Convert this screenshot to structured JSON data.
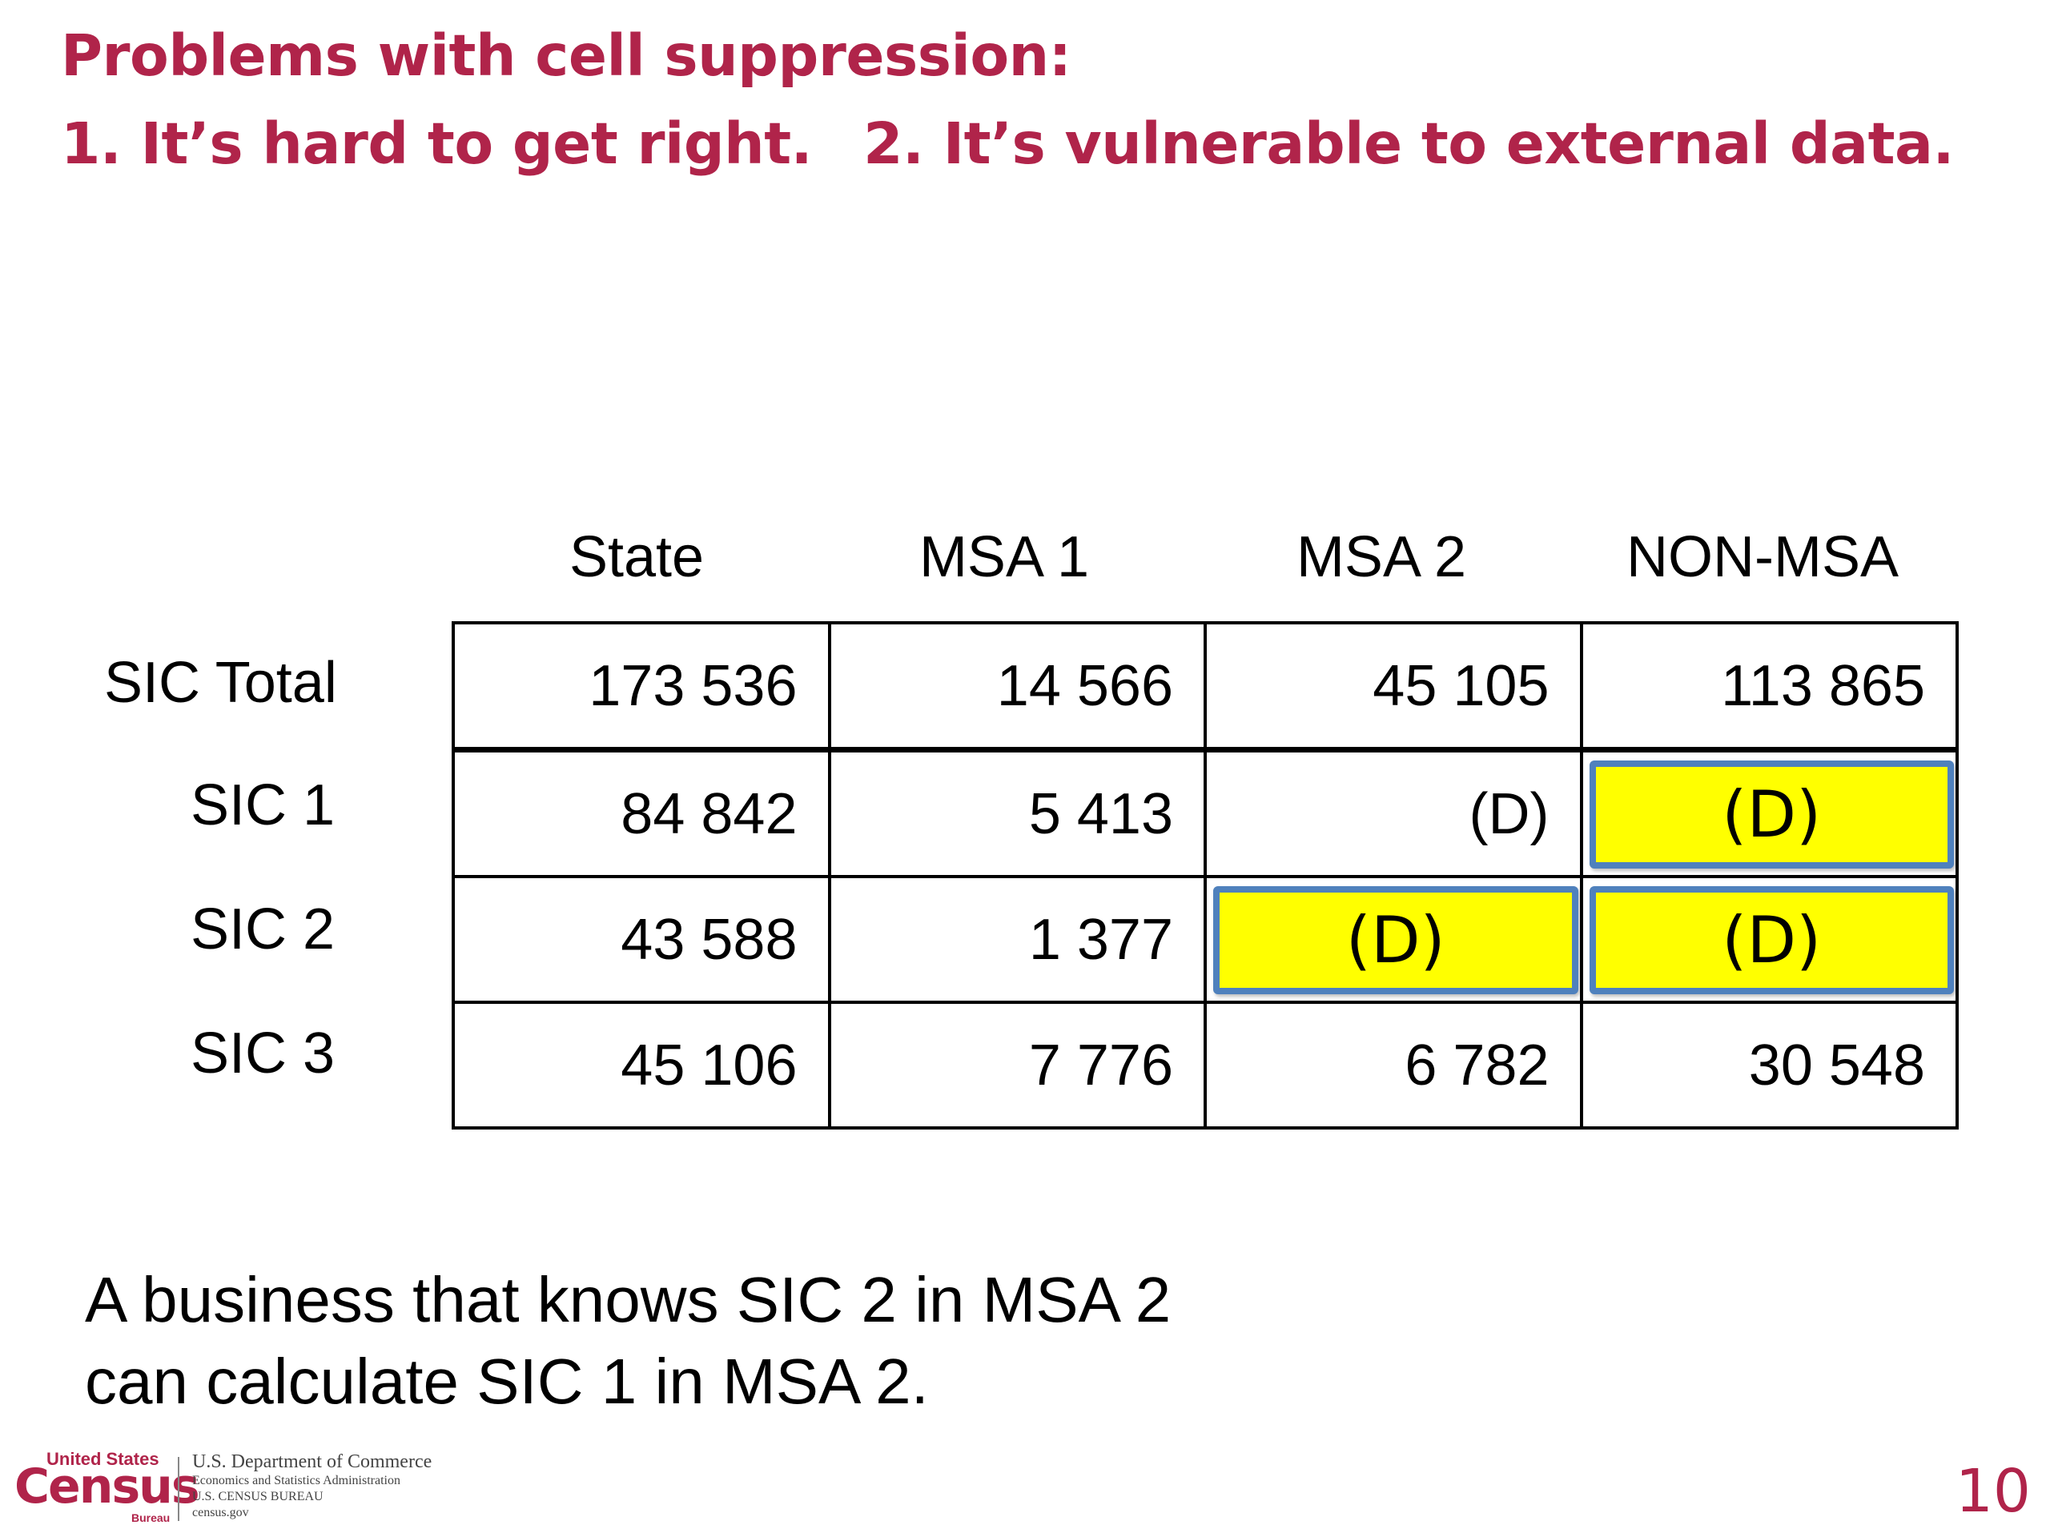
{
  "title": {
    "line1": "Problems with cell suppression:",
    "line2_part1": "1. It’s hard to get right.",
    "line2_part2": "2. It’s vulnerable to external data."
  },
  "table": {
    "columns": [
      "State",
      "MSA 1",
      "MSA 2",
      "NON-MSA"
    ],
    "rows": [
      {
        "label": "SIC Total",
        "cells": [
          "173 536",
          "14 566",
          "45 105",
          "113 865"
        ],
        "highlighted": [
          false,
          false,
          false,
          false
        ]
      },
      {
        "label": "SIC 1",
        "cells": [
          "84 842",
          "5 413",
          "(D)",
          "(D)"
        ],
        "highlighted": [
          false,
          false,
          false,
          true
        ]
      },
      {
        "label": "SIC 2",
        "cells": [
          "43 588",
          "1 377",
          "(D)",
          "(D)"
        ],
        "highlighted": [
          false,
          false,
          true,
          true
        ]
      },
      {
        "label": "SIC 3",
        "cells": [
          "45 106",
          "7 776",
          "6 782",
          "30 548"
        ],
        "highlighted": [
          false,
          false,
          false,
          false
        ]
      }
    ]
  },
  "caption": {
    "line1": "A business that knows SIC 2 in MSA 2",
    "line2": "can calculate SIC 1 in MSA 2."
  },
  "footer": {
    "logo_small": "United States",
    "logo_main": "Census",
    "logo_bureau": "Bureau",
    "dept_line1": "U.S. Department of Commerce",
    "dept_line2": "Economics and Statistics Administration",
    "dept_line3": "U.S. CENSUS BUREAU",
    "dept_line4": "census.gov",
    "page_number": "10"
  },
  "colors": {
    "title": "#b0244a",
    "highlight_fill": "#ffff00",
    "highlight_border": "#4f81bd"
  }
}
